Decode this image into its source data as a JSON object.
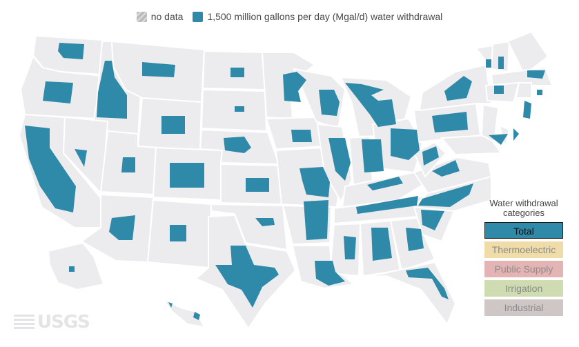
{
  "legend": {
    "no_data_label": "no data",
    "value_label": "1,500 million gallons per day (Mgal/d) water withdrawal"
  },
  "categories": {
    "title": "Water withdrawal categories",
    "items": [
      {
        "label": "Total",
        "color": "#2f89a8",
        "active": true
      },
      {
        "label": "Thermoelectric",
        "color": "#f0dca8",
        "active": false
      },
      {
        "label": "Public Supply",
        "color": "#e4b4b4",
        "active": false
      },
      {
        "label": "Irrigation",
        "color": "#cfdcb2",
        "active": false
      },
      {
        "label": "Industrial",
        "color": "#cfc7c5",
        "active": false
      }
    ]
  },
  "logo": {
    "text": "USGS"
  },
  "colors": {
    "symbol": "#2f89a8",
    "land": "#ececee",
    "no_data_swatch": "#b9b9b9"
  }
}
